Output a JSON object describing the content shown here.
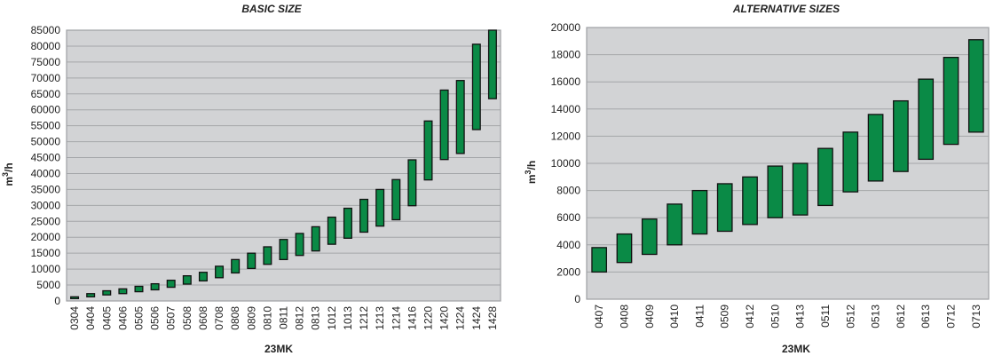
{
  "chart_data": [
    {
      "type": "bar",
      "title": "BASIC SIZE",
      "xlabel": "23MK",
      "ylabel": "m3/h",
      "ylim": [
        0,
        85000
      ],
      "yticks": [
        0,
        5000,
        10000,
        15000,
        20000,
        25000,
        30000,
        35000,
        40000,
        45000,
        50000,
        55000,
        60000,
        65000,
        70000,
        75000,
        80000,
        85000
      ],
      "grid": true,
      "bar_color": "#0a8a46",
      "categories": [
        "0304",
        "0404",
        "0405",
        "0406",
        "0505",
        "0506",
        "0507",
        "0508",
        "0608",
        "0708",
        "0808",
        "0809",
        "0810",
        "0811",
        "0812",
        "0813",
        "1012",
        "1013",
        "1212",
        "1213",
        "1214",
        "1416",
        "1220",
        "1420",
        "1224",
        "1424",
        "1428"
      ],
      "series": [
        {
          "low": [
            800,
            1300,
            1900,
            2300,
            2900,
            3500,
            4300,
            5300,
            6300,
            7300,
            8800,
            10200,
            11500,
            13000,
            14300,
            15700,
            17800,
            19700,
            21600,
            23500,
            25500,
            29900,
            38000,
            44400,
            46300,
            53800,
            63500
          ],
          "high": [
            1300,
            2300,
            3200,
            3800,
            4600,
            5400,
            6500,
            7900,
            9000,
            10900,
            13000,
            15000,
            17000,
            19300,
            21200,
            23300,
            26300,
            29100,
            31900,
            35000,
            38100,
            44300,
            56500,
            66200,
            69200,
            80600,
            85000
          ]
        }
      ]
    },
    {
      "type": "bar",
      "title": "ALTERNATIVE SIZES",
      "xlabel": "23MK",
      "ylabel": "m3/h",
      "ylim": [
        0,
        20000
      ],
      "yticks": [
        0,
        2000,
        4000,
        6000,
        8000,
        10000,
        12000,
        14000,
        16000,
        18000,
        20000
      ],
      "grid": true,
      "bar_color": "#0a8a46",
      "categories": [
        "0407",
        "0408",
        "0409",
        "0410",
        "0411",
        "0509",
        "0412",
        "0510",
        "0413",
        "0511",
        "0512",
        "0513",
        "0612",
        "0613",
        "0712",
        "0713"
      ],
      "series": [
        {
          "low": [
            2000,
            2700,
            3300,
            4000,
            4800,
            5000,
            5500,
            6000,
            6200,
            6900,
            7900,
            8700,
            9400,
            10300,
            11400,
            12300
          ],
          "high": [
            3800,
            4800,
            5900,
            7000,
            8000,
            8500,
            9000,
            9800,
            10000,
            11100,
            12300,
            13600,
            14600,
            16200,
            17800,
            19100
          ]
        }
      ]
    }
  ]
}
